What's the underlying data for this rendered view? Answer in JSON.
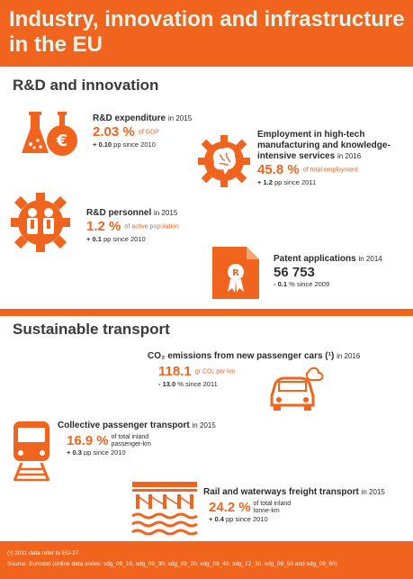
{
  "title": "Industry, innovation and infrastructure in the EU",
  "colors": {
    "accent": "#f0641e",
    "title_text": "#dff3ea"
  },
  "sections": {
    "rd": {
      "title": "R&D and innovation"
    },
    "transport": {
      "title": "Sustainable transport"
    }
  },
  "rd_expenditure": {
    "icon": "lab-flask-euro-icon",
    "label": "R&D expenditure",
    "year": "in 2015",
    "value": "2.03",
    "unit": "%",
    "unit_note": "of GDP",
    "change_value": "+ 0.10",
    "change_rest": "pp since 2010"
  },
  "hightech_employment": {
    "icon": "brain-gear-icon",
    "label": "Employment in high-tech manufacturing and knowledge-intensive services",
    "year": "in 2016",
    "value": "45.8",
    "unit": "%",
    "unit_note": "of total employment",
    "change_value": "+ 1.2",
    "change_rest": "pp since 2011"
  },
  "rd_personnel": {
    "icon": "researchers-gear-icon",
    "label": "R&D personnel",
    "year": "in 2015",
    "value": "1.2",
    "unit": "%",
    "unit_note": "of active population",
    "change_value": "+ 0.1",
    "change_rest": "pp since 2010"
  },
  "patents": {
    "icon": "patent-document-icon",
    "label": "Patent applications",
    "year": "in 2014",
    "value": "56 753",
    "change_value": "- 0.1",
    "change_rest": "% since 2009"
  },
  "co2_emissions": {
    "icon": "car-emissions-icon",
    "label": "CO₂ emissions from new passenger cars (¹)",
    "year": "in 2016",
    "value": "118.1",
    "unit_note": "gr CO₂ per km",
    "change_value": "- 13.0",
    "change_rest": "% since 2011"
  },
  "collective_transport": {
    "icon": "train-rail-icon",
    "label": "Collective passenger transport",
    "year": "in 2015",
    "value": "16.9",
    "unit": "%",
    "unit_note_1": "of total inland",
    "unit_note_2": "passenger-km",
    "change_value": "+ 0.3",
    "change_rest": "pp since 2010"
  },
  "freight_transport": {
    "icon": "bridge-waterway-icon",
    "label": "Rail and waterways freight transport",
    "year": "in 2015",
    "value": "24.2",
    "unit": "%",
    "unit_note_1": "of total inland",
    "unit_note_2": "tonne-km",
    "change_value": "+ 0.4",
    "change_rest": "pp since 2010"
  },
  "footer": {
    "note": "(¹) 2011 data refer to EU-27.",
    "source": "Source: Eurostat (online data codes: sdg_09_10, sdg_09_30, sdg_09_20, sdg_09_40, sdg_12_30, sdg_09_50 and sdg_09_60)"
  }
}
